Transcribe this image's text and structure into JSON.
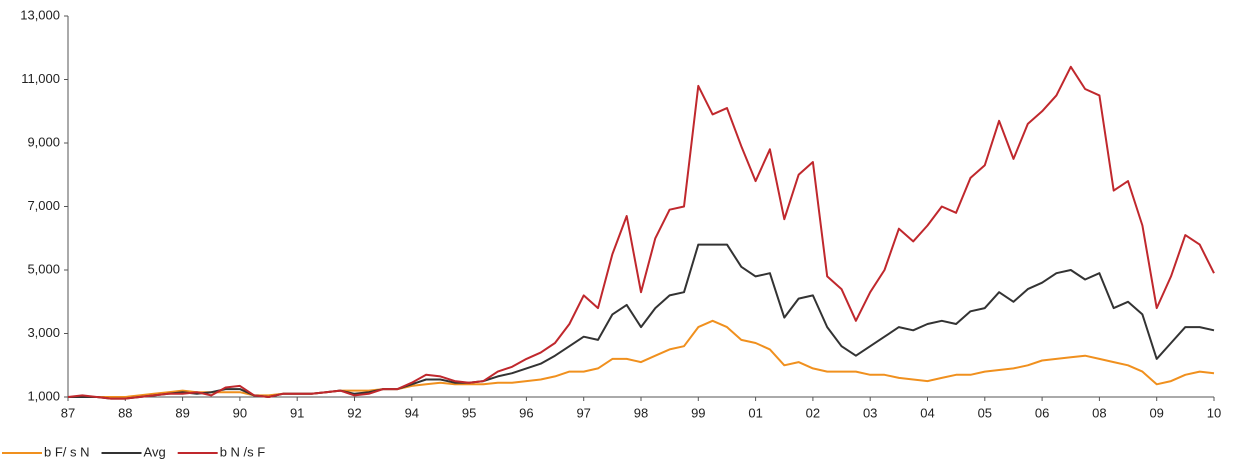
{
  "chart_data": {
    "type": "line",
    "categories": [
      "87",
      null,
      null,
      null,
      "88",
      null,
      null,
      null,
      "89",
      null,
      null,
      null,
      "90",
      null,
      null,
      null,
      "91",
      null,
      null,
      null,
      "92",
      null,
      null,
      null,
      "94",
      null,
      null,
      null,
      "95",
      null,
      null,
      null,
      "96",
      null,
      null,
      null,
      "97",
      null,
      null,
      null,
      "98",
      null,
      null,
      null,
      "99",
      null,
      null,
      null,
      "01",
      null,
      null,
      null,
      "02",
      null,
      null,
      null,
      "03",
      null,
      null,
      null,
      "04",
      null,
      null,
      null,
      "05",
      null,
      null,
      null,
      "06",
      null,
      null,
      null,
      "08",
      null,
      null,
      null,
      "09",
      null,
      null,
      null,
      "10"
    ],
    "series": [
      {
        "name": "b F/ s N",
        "color": "#f0901e",
        "values": [
          1000,
          1000,
          1000,
          1000,
          1000,
          1050,
          1100,
          1150,
          1200,
          1150,
          1150,
          1150,
          1150,
          1050,
          1050,
          1100,
          1100,
          1100,
          1150,
          1200,
          1200,
          1200,
          1250,
          1250,
          1350,
          1400,
          1450,
          1400,
          1400,
          1400,
          1450,
          1450,
          1500,
          1550,
          1650,
          1800,
          1800,
          1900,
          2200,
          2200,
          2100,
          2300,
          2500,
          2600,
          3200,
          3400,
          3200,
          2800,
          2700,
          2500,
          2000,
          2100,
          1900,
          1800,
          1800,
          1800,
          1700,
          1700,
          1600,
          1550,
          1500,
          1600,
          1700,
          1700,
          1800,
          1850,
          1900,
          2000,
          2150,
          2200,
          2250,
          2300,
          2200,
          2100,
          2000,
          1800,
          1400,
          1500,
          1700,
          1800,
          1750
        ]
      },
      {
        "name": "Avg",
        "color": "#333333",
        "values": [
          1000,
          1000,
          1000,
          950,
          950,
          1000,
          1050,
          1100,
          1150,
          1100,
          1150,
          1250,
          1250,
          1050,
          1000,
          1100,
          1100,
          1100,
          1150,
          1200,
          1100,
          1150,
          1250,
          1250,
          1400,
          1550,
          1550,
          1450,
          1450,
          1500,
          1650,
          1750,
          1900,
          2050,
          2300,
          2600,
          2900,
          2800,
          3600,
          3900,
          3200,
          3800,
          4200,
          4300,
          5800,
          5800,
          5800,
          5100,
          4800,
          4900,
          3500,
          4100,
          4200,
          3200,
          2600,
          2300,
          2600,
          2900,
          3200,
          3100,
          3300,
          3400,
          3300,
          3700,
          3800,
          4300,
          4000,
          4400,
          4600,
          4900,
          5000,
          4700,
          4900,
          3800,
          4000,
          3600,
          2200,
          2700,
          3200,
          3200,
          3100
        ]
      },
      {
        "name": "b N /s F",
        "color": "#c0282d",
        "values": [
          1000,
          1050,
          1000,
          950,
          950,
          1000,
          1050,
          1100,
          1100,
          1150,
          1050,
          1300,
          1350,
          1050,
          1000,
          1100,
          1100,
          1100,
          1150,
          1200,
          1050,
          1100,
          1250,
          1250,
          1450,
          1700,
          1650,
          1500,
          1450,
          1500,
          1800,
          1950,
          2200,
          2400,
          2700,
          3300,
          4200,
          3800,
          5500,
          6700,
          4300,
          6000,
          6900,
          7000,
          10800,
          9900,
          10100,
          8900,
          7800,
          8800,
          6600,
          8000,
          8400,
          4800,
          4400,
          3400,
          4300,
          5000,
          6300,
          5900,
          6400,
          7000,
          6800,
          7900,
          8300,
          9700,
          8500,
          9600,
          10000,
          10500,
          11400,
          10700,
          10500,
          7500,
          7800,
          6400,
          3800,
          4800,
          6100,
          5800,
          4900
        ]
      }
    ],
    "ylim": [
      1000,
      13000
    ],
    "yticks": [
      {
        "value": 1000,
        "label": "1,000"
      },
      {
        "value": 3000,
        "label": "3,000"
      },
      {
        "value": 5000,
        "label": "5,000"
      },
      {
        "value": 7000,
        "label": "7,000"
      },
      {
        "value": 9000,
        "label": "9,000"
      },
      {
        "value": 11000,
        "label": "11,000"
      },
      {
        "value": 13000,
        "label": "13,000"
      }
    ]
  }
}
